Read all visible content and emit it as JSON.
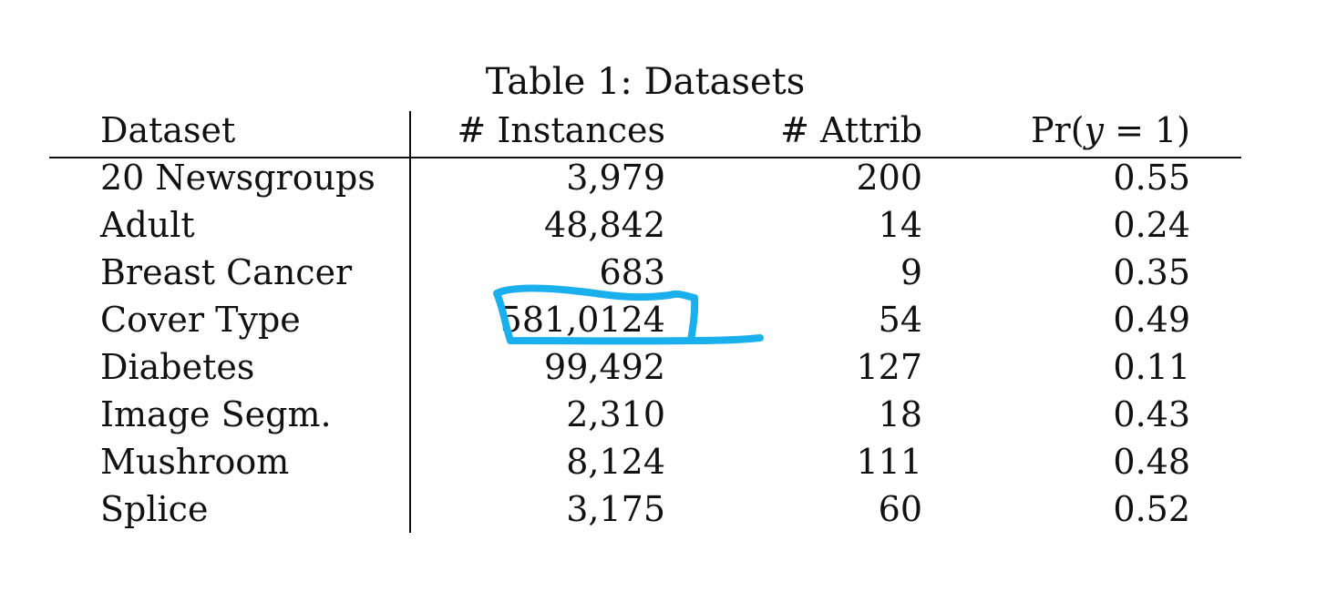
{
  "caption": "Table 1: Datasets",
  "headers": {
    "dataset": "Dataset",
    "instances": "# Instances",
    "attrib": "# Attrib",
    "pr": "Pr(y = 1)"
  },
  "rows": [
    {
      "dataset": "20 Newsgroups",
      "instances": "3,979",
      "attrib": "200",
      "pr": "0.55"
    },
    {
      "dataset": "Adult",
      "instances": "48,842",
      "attrib": "14",
      "pr": "0.24"
    },
    {
      "dataset": "Breast Cancer",
      "instances": "683",
      "attrib": "9",
      "pr": "0.35"
    },
    {
      "dataset": "Cover Type",
      "instances": "581,0124",
      "attrib": "54",
      "pr": "0.49"
    },
    {
      "dataset": "Diabetes",
      "instances": "99,492",
      "attrib": "127",
      "pr": "0.11"
    },
    {
      "dataset": "Image Segm.",
      "instances": "2,310",
      "attrib": "18",
      "pr": "0.43"
    },
    {
      "dataset": "Mushroom",
      "instances": "8,124",
      "attrib": "111",
      "pr": "0.48"
    },
    {
      "dataset": "Splice",
      "instances": "3,175",
      "attrib": "60",
      "pr": "0.52"
    }
  ],
  "annotation": {
    "color": "#1ab0ee",
    "target": "Cover Type # Instances"
  }
}
